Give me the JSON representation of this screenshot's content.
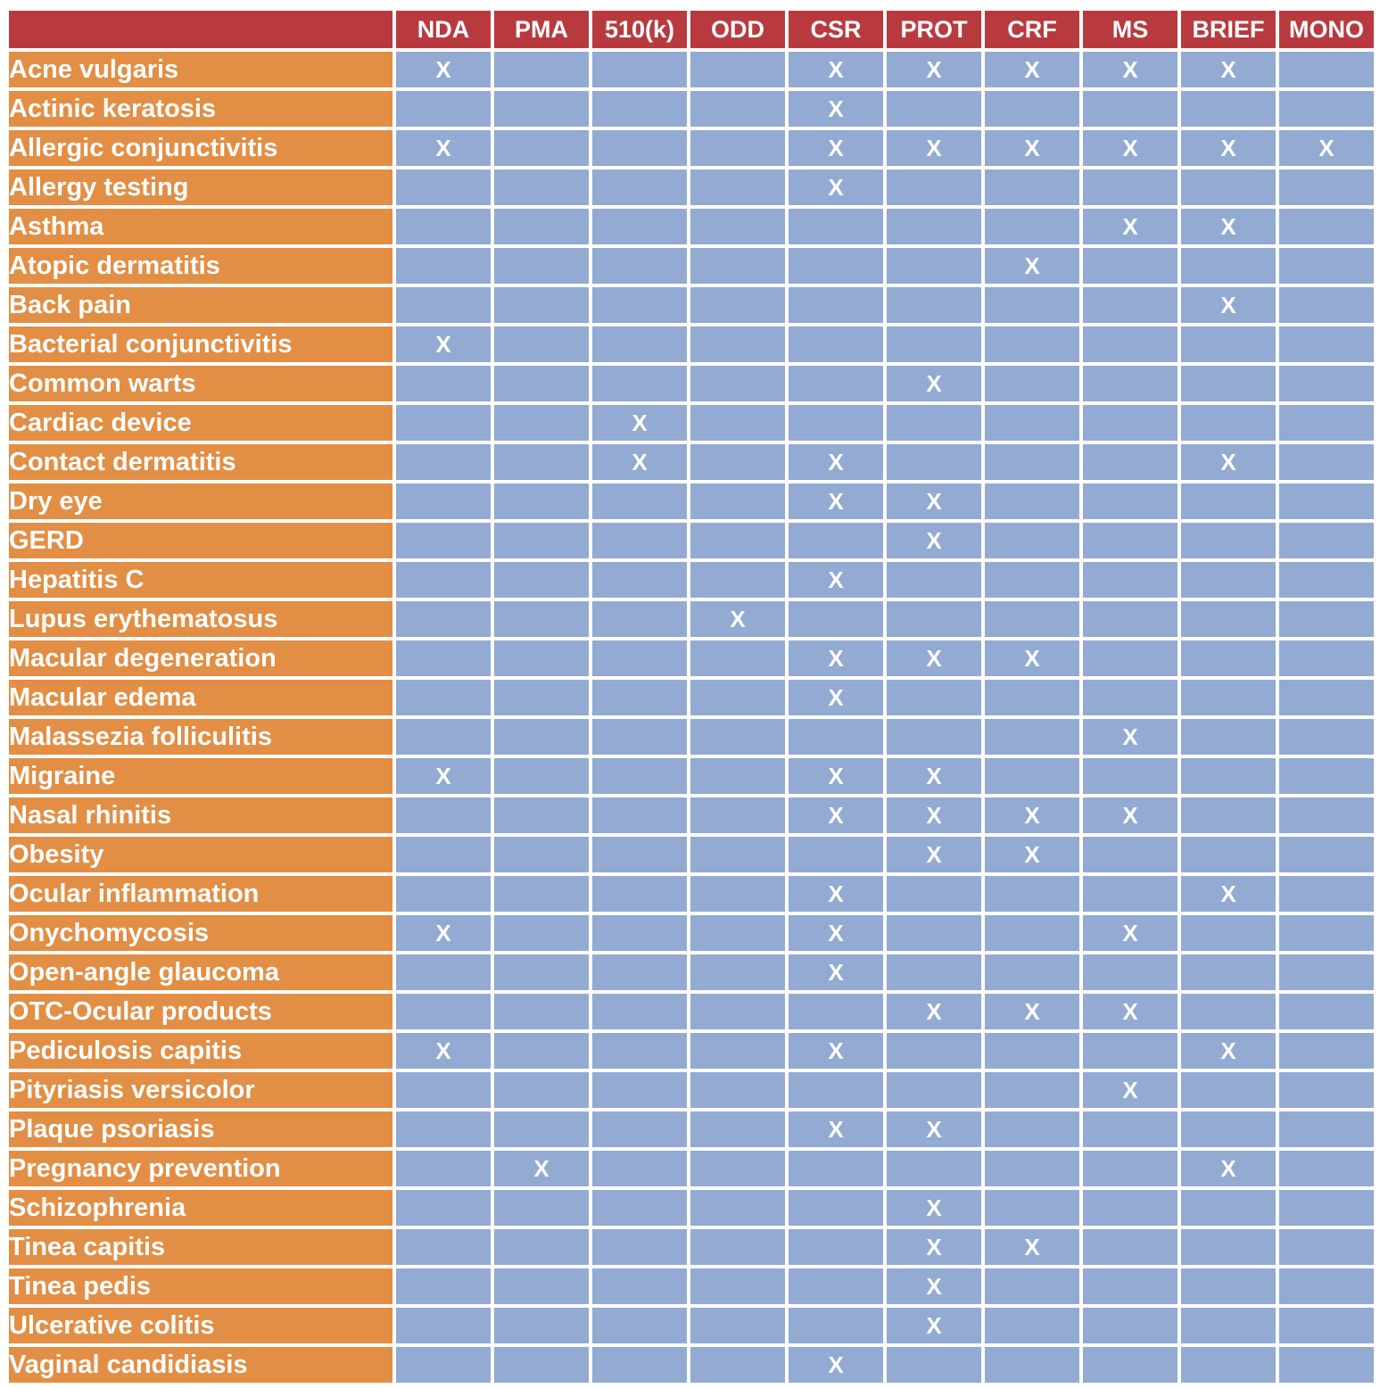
{
  "colors": {
    "header_bg": "#B93A3E",
    "label_bg": "#E28E44",
    "cell_bg": "#93AAD2",
    "text": "#FFFFFF",
    "gap": "#FFFFFF"
  },
  "corner_label": "",
  "chart_data": {
    "type": "table",
    "title": "",
    "mark_symbol": "X",
    "columns": [
      "NDA",
      "PMA",
      "510(k)",
      "ODD",
      "CSR",
      "PROT",
      "CRF",
      "MS",
      "BRIEF",
      "MONO"
    ],
    "rows": [
      {
        "label": "Acne vulgaris",
        "marks": [
          1,
          0,
          0,
          0,
          1,
          1,
          1,
          1,
          1,
          0
        ]
      },
      {
        "label": "Actinic keratosis",
        "marks": [
          0,
          0,
          0,
          0,
          1,
          0,
          0,
          0,
          0,
          0
        ]
      },
      {
        "label": "Allergic conjunctivitis",
        "marks": [
          1,
          0,
          0,
          0,
          1,
          1,
          1,
          1,
          1,
          1
        ]
      },
      {
        "label": "Allergy testing",
        "marks": [
          0,
          0,
          0,
          0,
          1,
          0,
          0,
          0,
          0,
          0
        ]
      },
      {
        "label": "Asthma",
        "marks": [
          0,
          0,
          0,
          0,
          0,
          0,
          0,
          1,
          1,
          0
        ]
      },
      {
        "label": "Atopic dermatitis",
        "marks": [
          0,
          0,
          0,
          0,
          0,
          0,
          1,
          0,
          0,
          0
        ]
      },
      {
        "label": "Back pain",
        "marks": [
          0,
          0,
          0,
          0,
          0,
          0,
          0,
          0,
          1,
          0
        ]
      },
      {
        "label": "Bacterial conjunctivitis",
        "marks": [
          1,
          0,
          0,
          0,
          0,
          0,
          0,
          0,
          0,
          0
        ]
      },
      {
        "label": "Common warts",
        "marks": [
          0,
          0,
          0,
          0,
          0,
          1,
          0,
          0,
          0,
          0
        ]
      },
      {
        "label": "Cardiac device",
        "marks": [
          0,
          0,
          1,
          0,
          0,
          0,
          0,
          0,
          0,
          0
        ]
      },
      {
        "label": "Contact dermatitis",
        "marks": [
          0,
          0,
          1,
          0,
          1,
          0,
          0,
          0,
          1,
          0
        ]
      },
      {
        "label": "Dry eye",
        "marks": [
          0,
          0,
          0,
          0,
          1,
          1,
          0,
          0,
          0,
          0
        ]
      },
      {
        "label": "GERD",
        "marks": [
          0,
          0,
          0,
          0,
          0,
          1,
          0,
          0,
          0,
          0
        ]
      },
      {
        "label": "Hepatitis C",
        "marks": [
          0,
          0,
          0,
          0,
          1,
          0,
          0,
          0,
          0,
          0
        ]
      },
      {
        "label": "Lupus erythematosus",
        "marks": [
          0,
          0,
          0,
          1,
          0,
          0,
          0,
          0,
          0,
          0
        ]
      },
      {
        "label": "Macular degeneration",
        "marks": [
          0,
          0,
          0,
          0,
          1,
          1,
          1,
          0,
          0,
          0
        ]
      },
      {
        "label": "Macular edema",
        "marks": [
          0,
          0,
          0,
          0,
          1,
          0,
          0,
          0,
          0,
          0
        ]
      },
      {
        "label": "Malassezia folliculitis",
        "marks": [
          0,
          0,
          0,
          0,
          0,
          0,
          0,
          1,
          0,
          0
        ]
      },
      {
        "label": "Migraine",
        "marks": [
          1,
          0,
          0,
          0,
          1,
          1,
          0,
          0,
          0,
          0
        ]
      },
      {
        "label": "Nasal rhinitis",
        "marks": [
          0,
          0,
          0,
          0,
          1,
          1,
          1,
          1,
          0,
          0
        ]
      },
      {
        "label": "Obesity",
        "marks": [
          0,
          0,
          0,
          0,
          0,
          1,
          1,
          0,
          0,
          0
        ]
      },
      {
        "label": "Ocular inflammation",
        "marks": [
          0,
          0,
          0,
          0,
          1,
          0,
          0,
          0,
          1,
          0
        ]
      },
      {
        "label": "Onychomycosis",
        "marks": [
          1,
          0,
          0,
          0,
          1,
          0,
          0,
          1,
          0,
          0
        ]
      },
      {
        "label": "Open-angle glaucoma",
        "marks": [
          0,
          0,
          0,
          0,
          1,
          0,
          0,
          0,
          0,
          0
        ]
      },
      {
        "label": "OTC-Ocular products",
        "marks": [
          0,
          0,
          0,
          0,
          0,
          1,
          1,
          1,
          0,
          0
        ]
      },
      {
        "label": "Pediculosis capitis",
        "marks": [
          1,
          0,
          0,
          0,
          1,
          0,
          0,
          0,
          1,
          0
        ]
      },
      {
        "label": "Pityriasis versicolor",
        "marks": [
          0,
          0,
          0,
          0,
          0,
          0,
          0,
          1,
          0,
          0
        ]
      },
      {
        "label": "Plaque psoriasis",
        "marks": [
          0,
          0,
          0,
          0,
          1,
          1,
          0,
          0,
          0,
          0
        ]
      },
      {
        "label": "Pregnancy prevention",
        "marks": [
          0,
          1,
          0,
          0,
          0,
          0,
          0,
          0,
          1,
          0
        ]
      },
      {
        "label": "Schizophrenia",
        "marks": [
          0,
          0,
          0,
          0,
          0,
          1,
          0,
          0,
          0,
          0
        ]
      },
      {
        "label": "Tinea capitis",
        "marks": [
          0,
          0,
          0,
          0,
          0,
          1,
          1,
          0,
          0,
          0
        ]
      },
      {
        "label": "Tinea pedis",
        "marks": [
          0,
          0,
          0,
          0,
          0,
          1,
          0,
          0,
          0,
          0
        ]
      },
      {
        "label": "Ulcerative colitis",
        "marks": [
          0,
          0,
          0,
          0,
          0,
          1,
          0,
          0,
          0,
          0
        ]
      },
      {
        "label": "Vaginal candidiasis",
        "marks": [
          0,
          0,
          0,
          0,
          1,
          0,
          0,
          0,
          0,
          0
        ]
      }
    ]
  }
}
